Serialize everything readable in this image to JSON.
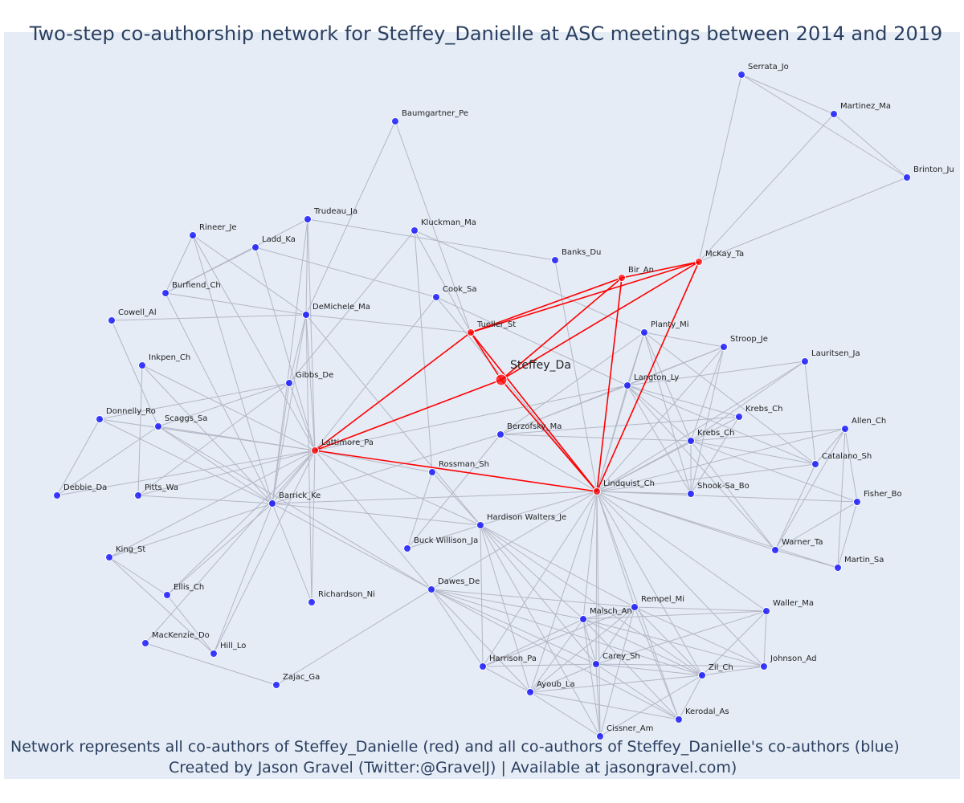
{
  "title": "Two-step co-authorship network for Steffey_Danielle at ASC meetings between 2014 and 2019",
  "caption_line1": "Network represents all co-authors of Steffey_Danielle (red) and all co-authors of Steffey_Danielle's co-authors (blue)",
  "caption_line2": "Created by Jason Gravel (Twitter:@GravelJ) | Available at jasongravel.com)",
  "colors": {
    "background": "#e5ecf6",
    "red": "#ff0000",
    "blue": "#0000ff",
    "edge": "#b4b7c6",
    "text": "#2a3f5f"
  },
  "network": {
    "center": "Steffey_Da",
    "nodes": [
      {
        "id": "Steffey_Da",
        "label": "Steffey_Da",
        "group": "center"
      },
      {
        "id": "Tueller_St",
        "label": "Tueller_St",
        "group": "red"
      },
      {
        "id": "Bir_An",
        "label": "Bir_An",
        "group": "red"
      },
      {
        "id": "McKay_Ta",
        "label": "McKay_Ta",
        "group": "red"
      },
      {
        "id": "Lattimore_Pa",
        "label": "Lattimore_Pa",
        "group": "red"
      },
      {
        "id": "Lindquist_Ch",
        "label": "Lindquist_Ch",
        "group": "red"
      },
      {
        "id": "Serrata_Jo",
        "label": "Serrata_Jo",
        "group": "blue"
      },
      {
        "id": "Martinez_Ma",
        "label": "Martinez_Ma",
        "group": "blue"
      },
      {
        "id": "Brinton_Ju",
        "label": "Brinton_Ju",
        "group": "blue"
      },
      {
        "id": "Baumgartner_Pe",
        "label": "Baumgartner_Pe",
        "group": "blue"
      },
      {
        "id": "Trudeau_Ja",
        "label": "Trudeau_Ja",
        "group": "blue"
      },
      {
        "id": "Kluckman_Ma",
        "label": "Kluckman_Ma",
        "group": "blue"
      },
      {
        "id": "Rineer_Je",
        "label": "Rineer_Je",
        "group": "blue"
      },
      {
        "id": "Ladd_Ka",
        "label": "Ladd_Ka",
        "group": "blue"
      },
      {
        "id": "Banks_Du",
        "label": "Banks_Du",
        "group": "blue"
      },
      {
        "id": "Burfiend_Ch",
        "label": "Burfiend_Ch",
        "group": "blue"
      },
      {
        "id": "Cook_Sa",
        "label": "Cook_Sa",
        "group": "blue"
      },
      {
        "id": "Cowell_Al",
        "label": "Cowell_Al",
        "group": "blue"
      },
      {
        "id": "DeMichele_Ma",
        "label": "DeMichele_Ma",
        "group": "blue"
      },
      {
        "id": "Planty_Mi",
        "label": "Planty_Mi",
        "group": "blue"
      },
      {
        "id": "Stroop_Je",
        "label": "Stroop_Je",
        "group": "blue"
      },
      {
        "id": "Inkpen_Ch",
        "label": "Inkpen_Ch",
        "group": "blue"
      },
      {
        "id": "Lauritsen_Ja",
        "label": "Lauritsen_Ja",
        "group": "blue"
      },
      {
        "id": "Gibbs_De",
        "label": "Gibbs_De",
        "group": "blue"
      },
      {
        "id": "Langton_Ly",
        "label": "Langton_Ly",
        "group": "blue"
      },
      {
        "id": "Krebs_Ch",
        "label": "Krebs_Ch",
        "group": "blue"
      },
      {
        "id": "Donnelly_Ro",
        "label": "Donnelly_Ro",
        "group": "blue"
      },
      {
        "id": "Scaggs_Sa",
        "label": "Scaggs_Sa",
        "group": "blue"
      },
      {
        "id": "Berzofsky_Ma",
        "label": "Berzofsky_Ma",
        "group": "blue"
      },
      {
        "id": "Allen_Ch",
        "label": "Allen_Ch",
        "group": "blue"
      },
      {
        "id": "Krebs_Ch2",
        "label": "Krebs_Ch",
        "group": "blue"
      },
      {
        "id": "Catalano_Sh",
        "label": "Catalano_Sh",
        "group": "blue"
      },
      {
        "id": "Rossman_Sh",
        "label": "Rossman_Sh",
        "group": "blue"
      },
      {
        "id": "Debbie_Da",
        "label": "Debbie_Da",
        "group": "blue"
      },
      {
        "id": "Pitts_Wa",
        "label": "Pitts_Wa",
        "group": "blue"
      },
      {
        "id": "Barrick_Ke",
        "label": "Barrick_Ke",
        "group": "blue"
      },
      {
        "id": "Shook-Sa_Bo",
        "label": "Shook-Sa_Bo",
        "group": "blue"
      },
      {
        "id": "Fisher_Bo",
        "label": "Fisher_Bo",
        "group": "blue"
      },
      {
        "id": "Hardison_Walters_Je",
        "label": "Hardison Walters_Je",
        "group": "blue"
      },
      {
        "id": "Buck_Willison_Ja",
        "label": "Buck Willison_Ja",
        "group": "blue"
      },
      {
        "id": "Warner_Ta",
        "label": "Warner_Ta",
        "group": "blue"
      },
      {
        "id": "Martin_Sa",
        "label": "Martin_Sa",
        "group": "blue"
      },
      {
        "id": "King_St",
        "label": "King_St",
        "group": "blue"
      },
      {
        "id": "Ellis_Ch",
        "label": "Ellis_Ch",
        "group": "blue"
      },
      {
        "id": "Richardson_Ni",
        "label": "Richardson_Ni",
        "group": "blue"
      },
      {
        "id": "Dawes_De",
        "label": "Dawes_De",
        "group": "blue"
      },
      {
        "id": "Rempel_Mi",
        "label": "Rempel_Mi",
        "group": "blue"
      },
      {
        "id": "Waller_Ma",
        "label": "Waller_Ma",
        "group": "blue"
      },
      {
        "id": "Malsch_An",
        "label": "Malsch_An",
        "group": "blue"
      },
      {
        "id": "MacKenzie_Do",
        "label": "MacKenzie_Do",
        "group": "blue"
      },
      {
        "id": "Hill_Lo",
        "label": "Hill_Lo",
        "group": "blue"
      },
      {
        "id": "Johnson_Ad",
        "label": "Johnson_Ad",
        "group": "blue"
      },
      {
        "id": "Harrison_Pa",
        "label": "Harrison_Pa",
        "group": "blue"
      },
      {
        "id": "Carey_Sh",
        "label": "Carey_Sh",
        "group": "blue"
      },
      {
        "id": "Zil_Ch",
        "label": "Zil_Ch",
        "group": "blue"
      },
      {
        "id": "Zajac_Ga",
        "label": "Zajac_Ga",
        "group": "blue"
      },
      {
        "id": "Ayoub_La",
        "label": "Ayoub_La",
        "group": "blue"
      },
      {
        "id": "Kerodal_As",
        "label": "Kerodal_As",
        "group": "blue"
      },
      {
        "id": "Cissner_Am",
        "label": "Cissner_Am",
        "group": "blue"
      }
    ],
    "red_edges": [
      [
        "Steffey_Da",
        "Tueller_St"
      ],
      [
        "Steffey_Da",
        "Bir_An"
      ],
      [
        "Steffey_Da",
        "McKay_Ta"
      ],
      [
        "Steffey_Da",
        "Lattimore_Pa"
      ],
      [
        "Steffey_Da",
        "Lindquist_Ch"
      ],
      [
        "Tueller_St",
        "Bir_An"
      ],
      [
        "Tueller_St",
        "McKay_Ta"
      ],
      [
        "Tueller_St",
        "Lattimore_Pa"
      ],
      [
        "Tueller_St",
        "Lindquist_Ch"
      ],
      [
        "Bir_An",
        "McKay_Ta"
      ],
      [
        "Bir_An",
        "Lindquist_Ch"
      ],
      [
        "McKay_Ta",
        "Lindquist_Ch"
      ],
      [
        "Lattimore_Pa",
        "Lindquist_Ch"
      ]
    ],
    "grey_edges": [
      [
        "Serrata_Jo",
        "Martinez_Ma"
      ],
      [
        "Serrata_Jo",
        "Brinton_Ju"
      ],
      [
        "Serrata_Jo",
        "McKay_Ta"
      ],
      [
        "Martinez_Ma",
        "Brinton_Ju"
      ],
      [
        "Martinez_Ma",
        "McKay_Ta"
      ],
      [
        "Brinton_Ju",
        "McKay_Ta"
      ],
      [
        "Baumgartner_Pe",
        "DeMichele_Ma"
      ],
      [
        "Baumgartner_Pe",
        "Tueller_St"
      ],
      [
        "Trudeau_Ja",
        "Banks_Du"
      ],
      [
        "Trudeau_Ja",
        "DeMichele_Ma"
      ],
      [
        "Trudeau_Ja",
        "Lattimore_Pa"
      ],
      [
        "Trudeau_Ja",
        "Burfiend_Ch"
      ],
      [
        "Trudeau_Ja",
        "Barrick_Ke"
      ],
      [
        "Kluckman_Ma",
        "Tueller_St"
      ],
      [
        "Kluckman_Ma",
        "Rossman_Sh"
      ],
      [
        "Kluckman_Ma",
        "Gibbs_De"
      ],
      [
        "Kluckman_Ma",
        "Planty_Mi"
      ],
      [
        "Rineer_Je",
        "Burfiend_Ch"
      ],
      [
        "Rineer_Je",
        "Lattimore_Pa"
      ],
      [
        "Rineer_Je",
        "Barrick_Ke"
      ],
      [
        "Rineer_Je",
        "DeMichele_Ma"
      ],
      [
        "Ladd_Ka",
        "Lattimore_Pa"
      ],
      [
        "Ladd_Ka",
        "Burfiend_Ch"
      ],
      [
        "Ladd_Ka",
        "Cook_Sa"
      ],
      [
        "Banks_Du",
        "Lindquist_Ch"
      ],
      [
        "Burfiend_Ch",
        "DeMichele_Ma"
      ],
      [
        "Burfiend_Ch",
        "Barrick_Ke"
      ],
      [
        "Cook_Sa",
        "Lattimore_Pa"
      ],
      [
        "Cook_Sa",
        "Langton_Ly"
      ],
      [
        "Cook_Sa",
        "Lindquist_Ch"
      ],
      [
        "Cowell_Al",
        "DeMichele_Ma"
      ],
      [
        "Cowell_Al",
        "Scaggs_Sa"
      ],
      [
        "DeMichele_Ma",
        "Tueller_St"
      ],
      [
        "DeMichele_Ma",
        "Lattimore_Pa"
      ],
      [
        "DeMichele_Ma",
        "Barrick_Ke"
      ],
      [
        "DeMichele_Ma",
        "Gibbs_De"
      ],
      [
        "DeMichele_Ma",
        "Hardison_Walters_Je"
      ],
      [
        "DeMichele_Ma",
        "Richardson_Ni"
      ],
      [
        "Planty_Mi",
        "Lindquist_Ch"
      ],
      [
        "Planty_Mi",
        "Langton_Ly"
      ],
      [
        "Planty_Mi",
        "Krebs_Ch2"
      ],
      [
        "Planty_Mi",
        "Shook-Sa_Bo"
      ],
      [
        "Planty_Mi",
        "Stroop_Je"
      ],
      [
        "Planty_Mi",
        "Catalano_Sh"
      ],
      [
        "Planty_Mi",
        "Berzofsky_Ma"
      ],
      [
        "Stroop_Je",
        "Langton_Ly"
      ],
      [
        "Stroop_Je",
        "Lindquist_Ch"
      ],
      [
        "Stroop_Je",
        "Krebs_Ch2"
      ],
      [
        "Stroop_Je",
        "Shook-Sa_Bo"
      ],
      [
        "Stroop_Je",
        "Berzofsky_Ma"
      ],
      [
        "Inkpen_Ch",
        "Lattimore_Pa"
      ],
      [
        "Inkpen_Ch",
        "Barrick_Ke"
      ],
      [
        "Inkpen_Ch",
        "Pitts_Wa"
      ],
      [
        "Lauritsen_Ja",
        "Langton_Ly"
      ],
      [
        "Lauritsen_Ja",
        "Lindquist_Ch"
      ],
      [
        "Lauritsen_Ja",
        "Catalano_Sh"
      ],
      [
        "Lauritsen_Ja",
        "Krebs_Ch2"
      ],
      [
        "Gibbs_De",
        "Lattimore_Pa"
      ],
      [
        "Gibbs_De",
        "Barrick_Ke"
      ],
      [
        "Gibbs_De",
        "Scaggs_Sa"
      ],
      [
        "Gibbs_De",
        "Donnelly_Ro"
      ],
      [
        "Gibbs_De",
        "Pitts_Wa"
      ],
      [
        "Langton_Ly",
        "Lindquist_Ch"
      ],
      [
        "Langton_Ly",
        "Krebs_Ch"
      ],
      [
        "Langton_Ly",
        "Krebs_Ch2"
      ],
      [
        "Langton_Ly",
        "Berzofsky_Ma"
      ],
      [
        "Langton_Ly",
        "Shook-Sa_Bo"
      ],
      [
        "Langton_Ly",
        "Catalano_Sh"
      ],
      [
        "Langton_Ly",
        "Warner_Ta"
      ],
      [
        "Langton_Ly",
        "Lattimore_Pa"
      ],
      [
        "Krebs_Ch",
        "Lindquist_Ch"
      ],
      [
        "Krebs_Ch",
        "Berzofsky_Ma"
      ],
      [
        "Krebs_Ch",
        "Shook-Sa_Bo"
      ],
      [
        "Donnelly_Ro",
        "Lattimore_Pa"
      ],
      [
        "Donnelly_Ro",
        "Barrick_Ke"
      ],
      [
        "Donnelly_Ro",
        "Debbie_Da"
      ],
      [
        "Scaggs_Sa",
        "Lattimore_Pa"
      ],
      [
        "Scaggs_Sa",
        "Barrick_Ke"
      ],
      [
        "Scaggs_Sa",
        "Dawes_De"
      ],
      [
        "Berzofsky_Ma",
        "Lindquist_Ch"
      ],
      [
        "Berzofsky_Ma",
        "Barrick_Ke"
      ],
      [
        "Berzofsky_Ma",
        "Krebs_Ch2"
      ],
      [
        "Allen_Ch",
        "Lindquist_Ch"
      ],
      [
        "Allen_Ch",
        "Catalano_Sh"
      ],
      [
        "Allen_Ch",
        "Fisher_Bo"
      ],
      [
        "Allen_Ch",
        "Martin_Sa"
      ],
      [
        "Allen_Ch",
        "Warner_Ta"
      ],
      [
        "Allen_Ch",
        "Krebs_Ch2"
      ],
      [
        "Krebs_Ch2",
        "Lindquist_Ch"
      ],
      [
        "Krebs_Ch2",
        "Shook-Sa_Bo"
      ],
      [
        "Krebs_Ch2",
        "Catalano_Sh"
      ],
      [
        "Krebs_Ch2",
        "Fisher_Bo"
      ],
      [
        "Krebs_Ch2",
        "Warner_Ta"
      ],
      [
        "Catalano_Sh",
        "Lindquist_Ch"
      ],
      [
        "Catalano_Sh",
        "Warner_Ta"
      ],
      [
        "Rossman_Sh",
        "Buck_Willison_Ja"
      ],
      [
        "Rossman_Sh",
        "Lattimore_Pa"
      ],
      [
        "Rossman_Sh",
        "Hardison_Walters_Je"
      ],
      [
        "Debbie_Da",
        "Lattimore_Pa"
      ],
      [
        "Debbie_Da",
        "Scaggs_Sa"
      ],
      [
        "Pitts_Wa",
        "Lattimore_Pa"
      ],
      [
        "Pitts_Wa",
        "Barrick_Ke"
      ],
      [
        "Barrick_Ke",
        "Lattimore_Pa"
      ],
      [
        "Barrick_Ke",
        "Hardison_Walters_Je"
      ],
      [
        "Barrick_Ke",
        "King_St"
      ],
      [
        "Barrick_Ke",
        "Ellis_Ch"
      ],
      [
        "Barrick_Ke",
        "Hill_Lo"
      ],
      [
        "Barrick_Ke",
        "Richardson_Ni"
      ],
      [
        "Barrick_Ke",
        "Dawes_De"
      ],
      [
        "Barrick_Ke",
        "Lindquist_Ch"
      ],
      [
        "Shook-Sa_Bo",
        "Lindquist_Ch"
      ],
      [
        "Fisher_Bo",
        "Lindquist_Ch"
      ],
      [
        "Fisher_Bo",
        "Martin_Sa"
      ],
      [
        "Fisher_Bo",
        "Warner_Ta"
      ],
      [
        "Hardison_Walters_Je",
        "Lindquist_Ch"
      ],
      [
        "Hardison_Walters_Je",
        "Buck_Willison_Ja"
      ],
      [
        "Hardison_Walters_Je",
        "Malsch_An"
      ],
      [
        "Hardison_Walters_Je",
        "Carey_Sh"
      ],
      [
        "Hardison_Walters_Je",
        "Zil_Ch"
      ],
      [
        "Hardison_Walters_Je",
        "Ayoub_La"
      ],
      [
        "Hardison_Walters_Je",
        "Harrison_Pa"
      ],
      [
        "Hardison_Walters_Je",
        "Rempel_Mi"
      ],
      [
        "Hardison_Walters_Je",
        "Lattimore_Pa"
      ],
      [
        "Buck_Willison_Ja",
        "Berzofsky_Ma"
      ],
      [
        "Warner_Ta",
        "Lindquist_Ch"
      ],
      [
        "Warner_Ta",
        "Martin_Sa"
      ],
      [
        "Martin_Sa",
        "Lindquist_Ch"
      ],
      [
        "King_St",
        "Lattimore_Pa"
      ],
      [
        "King_St",
        "Ellis_Ch"
      ],
      [
        "King_St",
        "Hill_Lo"
      ],
      [
        "Ellis_Ch",
        "Lattimore_Pa"
      ],
      [
        "Ellis_Ch",
        "Hill_Lo"
      ],
      [
        "Richardson_Ni",
        "Lattimore_Pa"
      ],
      [
        "Dawes_De",
        "Lattimore_Pa"
      ],
      [
        "Dawes_De",
        "Lindquist_Ch"
      ],
      [
        "Dawes_De",
        "Malsch_An"
      ],
      [
        "Dawes_De",
        "Carey_Sh"
      ],
      [
        "Dawes_De",
        "Zil_Ch"
      ],
      [
        "Dawes_De",
        "Ayoub_La"
      ],
      [
        "Dawes_De",
        "Harrison_Pa"
      ],
      [
        "Dawes_De",
        "Rempel_Mi"
      ],
      [
        "Dawes_De",
        "Kerodal_As"
      ],
      [
        "Dawes_De",
        "Zajac_Ga"
      ],
      [
        "Rempel_Mi",
        "Lindquist_Ch"
      ],
      [
        "Rempel_Mi",
        "Malsch_An"
      ],
      [
        "Rempel_Mi",
        "Waller_Ma"
      ],
      [
        "Rempel_Mi",
        "Johnson_Ad"
      ],
      [
        "Rempel_Mi",
        "Zil_Ch"
      ],
      [
        "Rempel_Mi",
        "Carey_Sh"
      ],
      [
        "Rempel_Mi",
        "Ayoub_La"
      ],
      [
        "Rempel_Mi",
        "Harrison_Pa"
      ],
      [
        "Rempel_Mi",
        "Kerodal_As"
      ],
      [
        "Rempel_Mi",
        "Cissner_Am"
      ],
      [
        "Waller_Ma",
        "Lindquist_Ch"
      ],
      [
        "Waller_Ma",
        "Zil_Ch"
      ],
      [
        "Waller_Ma",
        "Johnson_Ad"
      ],
      [
        "Waller_Ma",
        "Malsch_An"
      ],
      [
        "Waller_Ma",
        "Carey_Sh"
      ],
      [
        "Malsch_An",
        "Lindquist_Ch"
      ],
      [
        "Malsch_An",
        "Carey_Sh"
      ],
      [
        "Malsch_An",
        "Zil_Ch"
      ],
      [
        "Malsch_An",
        "Ayoub_La"
      ],
      [
        "Malsch_An",
        "Harrison_Pa"
      ],
      [
        "Malsch_An",
        "Johnson_Ad"
      ],
      [
        "Malsch_An",
        "Kerodal_As"
      ],
      [
        "Malsch_An",
        "Cissner_Am"
      ],
      [
        "MacKenzie_Do",
        "Zajac_Ga"
      ],
      [
        "MacKenzie_Do",
        "Lattimore_Pa"
      ],
      [
        "Hill_Lo",
        "Lattimore_Pa"
      ],
      [
        "Johnson_Ad",
        "Lindquist_Ch"
      ],
      [
        "Johnson_Ad",
        "Carey_Sh"
      ],
      [
        "Johnson_Ad",
        "Zil_Ch"
      ],
      [
        "Harrison_Pa",
        "Lindquist_Ch"
      ],
      [
        "Harrison_Pa",
        "Carey_Sh"
      ],
      [
        "Harrison_Pa",
        "Ayoub_La"
      ],
      [
        "Carey_Sh",
        "Lindquist_Ch"
      ],
      [
        "Carey_Sh",
        "Zil_Ch"
      ],
      [
        "Carey_Sh",
        "Ayoub_La"
      ],
      [
        "Carey_Sh",
        "Kerodal_As"
      ],
      [
        "Carey_Sh",
        "Cissner_Am"
      ],
      [
        "Zil_Ch",
        "Lindquist_Ch"
      ],
      [
        "Zil_Ch",
        "Ayoub_La"
      ],
      [
        "Zil_Ch",
        "Kerodal_As"
      ],
      [
        "Zil_Ch",
        "Cissner_Am"
      ],
      [
        "Ayoub_La",
        "Lindquist_Ch"
      ],
      [
        "Ayoub_La",
        "Kerodal_As"
      ],
      [
        "Ayoub_La",
        "Cissner_Am"
      ],
      [
        "Kerodal_As",
        "Lindquist_Ch"
      ],
      [
        "Cissner_Am",
        "Lindquist_Ch"
      ],
      [
        "Cissner_Am",
        "Hardison_Walters_Je"
      ]
    ]
  }
}
